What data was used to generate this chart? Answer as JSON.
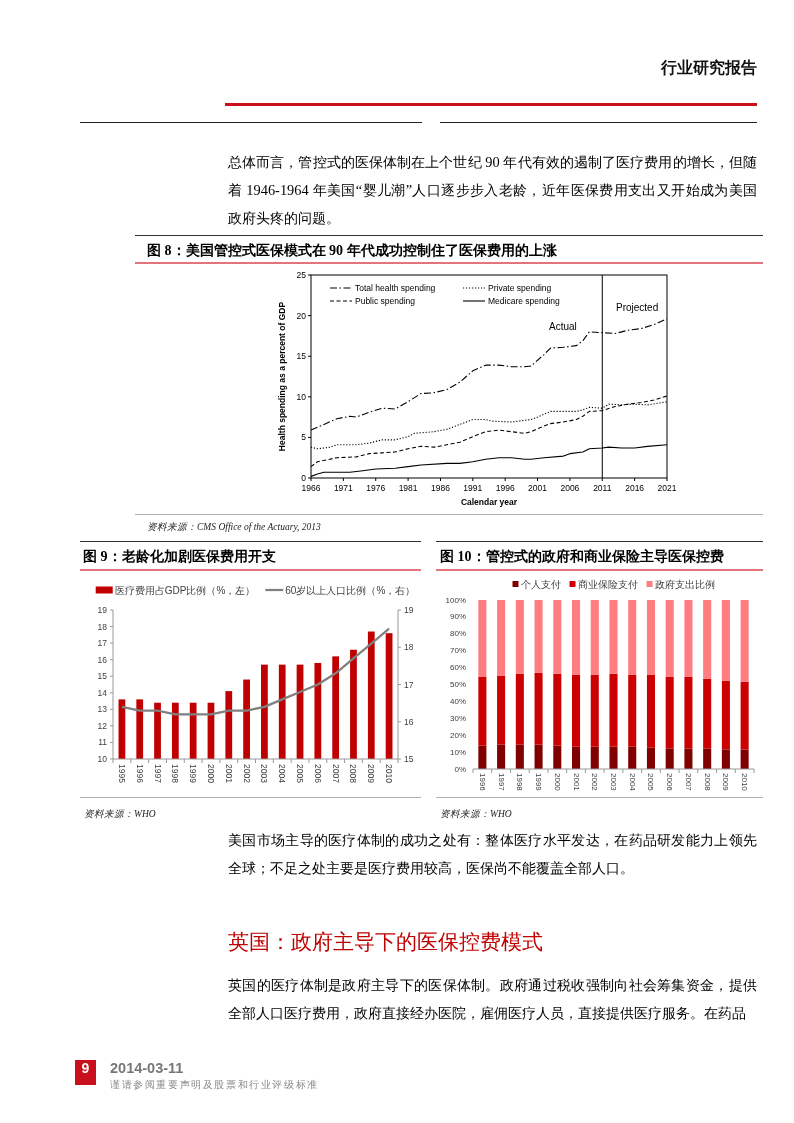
{
  "chart_data": [
    {
      "type": "line",
      "title": "图 8：美国管控式医保模式在 90 年代成功控制住了医保费用的上涨",
      "xlabel": "Calendar year",
      "ylabel": "Health spending as a percent of GDP",
      "xlim": [
        1966,
        2021
      ],
      "xticks": [
        1966,
        1971,
        1976,
        1981,
        1986,
        1991,
        1996,
        2001,
        2006,
        2011,
        2016,
        2021
      ],
      "ylim": [
        0,
        25
      ],
      "yticks": [
        0,
        5,
        10,
        15,
        20,
        25
      ],
      "legend": "top left",
      "ref_lines": [
        {
          "axis": "x",
          "value": 2011,
          "color": "#000000"
        }
      ],
      "series": [
        {
          "name": "Total health spending",
          "color": "#000000",
          "line_style": "dashdot",
          "x": [
            1966,
            1968,
            1970,
            1972,
            1973,
            1975,
            1977,
            1979,
            1981,
            1983,
            1985,
            1987,
            1989,
            1991,
            1993,
            1995,
            1997,
            1999,
            2000,
            2002,
            2003,
            2005,
            2007,
            2008,
            2009,
            2011,
            2013,
            2015,
            2017,
            2019,
            2021
          ],
          "values": [
            5.9,
            6.6,
            7.3,
            7.6,
            7.5,
            8.1,
            8.6,
            8.5,
            9.4,
            10.4,
            10.5,
            10.9,
            11.8,
            13.2,
            13.9,
            13.9,
            13.7,
            13.7,
            13.8,
            15.2,
            16.0,
            16.1,
            16.3,
            16.9,
            18.0,
            17.9,
            17.8,
            18.2,
            18.4,
            18.9,
            19.6
          ]
        },
        {
          "name": "Private spending",
          "color": "#000000",
          "line_style": "dotted",
          "x": [
            1966,
            1967,
            1969,
            1970,
            1973,
            1975,
            1977,
            1979,
            1981,
            1982,
            1985,
            1987,
            1989,
            1991,
            1993,
            1994,
            1997,
            2000,
            2001,
            2003,
            2005,
            2007,
            2008,
            2009,
            2011,
            2012,
            2014,
            2016,
            2018,
            2021
          ],
          "values": [
            3.8,
            3.6,
            3.8,
            4.1,
            4.1,
            4.3,
            4.7,
            4.7,
            5.1,
            5.5,
            5.7,
            6.0,
            6.6,
            7.2,
            7.2,
            7.0,
            6.9,
            7.2,
            7.5,
            8.2,
            8.2,
            8.2,
            8.4,
            8.7,
            8.6,
            9.1,
            9.0,
            9.1,
            9.0,
            9.4
          ]
        },
        {
          "name": "Public spending",
          "color": "#000000",
          "line_style": "dashed",
          "x": [
            1966,
            1967,
            1970,
            1973,
            1975,
            1977,
            1979,
            1981,
            1983,
            1985,
            1987,
            1989,
            1991,
            1993,
            1995,
            1997,
            1999,
            2000,
            2002,
            2003,
            2005,
            2007,
            2008,
            2009,
            2011,
            2013,
            2015,
            2017,
            2019,
            2021
          ],
          "values": [
            1.4,
            2.0,
            2.5,
            2.6,
            3.0,
            3.1,
            3.2,
            3.6,
            3.9,
            3.8,
            4.1,
            4.4,
            5.1,
            5.7,
            5.9,
            5.7,
            5.5,
            5.7,
            6.4,
            6.7,
            6.9,
            7.2,
            7.6,
            8.2,
            8.3,
            8.8,
            9.1,
            9.3,
            9.6,
            10.1
          ]
        },
        {
          "name": "Medicare spending",
          "color": "#000000",
          "line_style": "solid",
          "x": [
            1966,
            1967,
            1968,
            1972,
            1974,
            1976,
            1979,
            1981,
            1983,
            1987,
            1989,
            1991,
            1993,
            1995,
            1997,
            1999,
            2000,
            2002,
            2005,
            2006,
            2008,
            2009,
            2011,
            2012,
            2014,
            2016,
            2018,
            2021
          ],
          "values": [
            0.2,
            0.5,
            0.7,
            0.7,
            0.9,
            1.1,
            1.2,
            1.4,
            1.6,
            1.8,
            1.8,
            2.0,
            2.3,
            2.5,
            2.5,
            2.3,
            2.3,
            2.5,
            2.7,
            3.0,
            3.2,
            3.6,
            3.7,
            3.8,
            3.7,
            3.7,
            3.9,
            4.1
          ]
        }
      ],
      "annotations": [
        "行业研究报告",
        "总体而言，管控式的医保体制在上个世纪 90 年代有效的遏制了医疗费用的增长，但随着 1946-1964 年美国“婴儿潮”人口逐步步入老龄，近年医保费用支出又开始成为美国政府头疼的问题。",
        "Actual",
        "Projected",
        "资料来源：CMS Office of the Actuary, 2013"
      ]
    },
    {
      "type": "bar",
      "title": "图 9：老龄化加剧医保费用开支",
      "categories": [
        "1995",
        "1996",
        "1997",
        "1998",
        "1999",
        "2000",
        "2001",
        "2002",
        "2003",
        "2004",
        "2005",
        "2006",
        "2007",
        "2008",
        "2009",
        "2010"
      ],
      "ylim": [
        10,
        19
      ],
      "yticks": [
        10,
        11,
        12,
        13,
        14,
        15,
        16,
        17,
        18,
        19
      ],
      "y2lim": [
        15,
        19
      ],
      "y2ticks": [
        15,
        16,
        17,
        18,
        19
      ],
      "legend": "top",
      "series": [
        {
          "name": "医疗费用占GDP比例（%，左）",
          "color": "#c00000",
          "values": [
            13.6,
            13.6,
            13.4,
            13.4,
            13.4,
            13.4,
            14.1,
            14.8,
            15.7,
            15.7,
            15.7,
            15.8,
            16.2,
            16.6,
            17.7,
            17.6
          ]
        },
        {
          "name": "60岁以上人口比例（%，右）",
          "type": "line",
          "axis": "y2",
          "color": "#808080",
          "values": [
            16.4,
            16.3,
            16.3,
            16.2,
            16.2,
            16.2,
            16.3,
            16.3,
            16.4,
            16.6,
            16.8,
            17.0,
            17.3,
            17.7,
            18.1,
            18.5
          ]
        }
      ],
      "annotations": [
        "资料来源：WHO"
      ]
    },
    {
      "type": "bar",
      "stacked": true,
      "title": "图 10：管控式的政府和商业保险主导医保控费",
      "categories": [
        "1996",
        "1997",
        "1998",
        "1999",
        "2000",
        "2001",
        "2002",
        "2003",
        "2004",
        "2005",
        "2006",
        "2007",
        "2008",
        "2009",
        "2010"
      ],
      "ylim": [
        0,
        100
      ],
      "yticks": [
        {
          "value": 0,
          "label": "0%"
        },
        {
          "value": 10,
          "label": "10%"
        },
        {
          "value": 20,
          "label": "20%"
        },
        {
          "value": 30,
          "label": "30%"
        },
        {
          "value": 40,
          "label": "40%"
        },
        {
          "value": 50,
          "label": "50%"
        },
        {
          "value": 60,
          "label": "60%"
        },
        {
          "value": 70,
          "label": "70%"
        },
        {
          "value": 80,
          "label": "80%"
        },
        {
          "value": 90,
          "label": "90%"
        },
        {
          "value": 100,
          "label": "100%"
        }
      ],
      "legend": "top",
      "series": [
        {
          "name": "个人支付",
          "color": "#800000",
          "values": [
            13.8,
            14.4,
            14.4,
            14.4,
            13.8,
            13.2,
            13.2,
            13.2,
            13.2,
            12.6,
            12.2,
            12.2,
            12.2,
            11.6,
            11.6
          ]
        },
        {
          "name": "商业保险支付",
          "color": "#cc0000",
          "values": [
            40.7,
            40.7,
            41.9,
            42.5,
            42.5,
            42.5,
            42.5,
            43.1,
            42.5,
            43.1,
            42.3,
            42.3,
            41.1,
            40.6,
            40.0
          ]
        },
        {
          "name": "政府支出比例",
          "color": "#ff7c80",
          "values": [
            45.5,
            44.9,
            43.7,
            43.1,
            43.7,
            44.3,
            44.3,
            43.7,
            44.3,
            44.3,
            45.5,
            45.5,
            46.7,
            47.8,
            48.4
          ]
        }
      ],
      "annotations": [
        "资料来源：WHO",
        "美国市场主导的医疗体制的成功之处有：整体医疗水平发达，在药品研发能力上领先全球；不足之处主要是医疗费用较高，医保尚不能覆盖全部人口。",
        "英国：政府主导下的医保控费模式",
        "英国的医疗体制是政府主导下的医保体制。政府通过税收强制向社会筹集资金，提供全部人口医疗费用，政府直接经办医院，雇佣医疗人员，直接提供医疗服务。在药品",
        "9",
        "2014-03-11",
        "谨请参阅重要声明及股票和行业评级标准"
      ]
    }
  ]
}
